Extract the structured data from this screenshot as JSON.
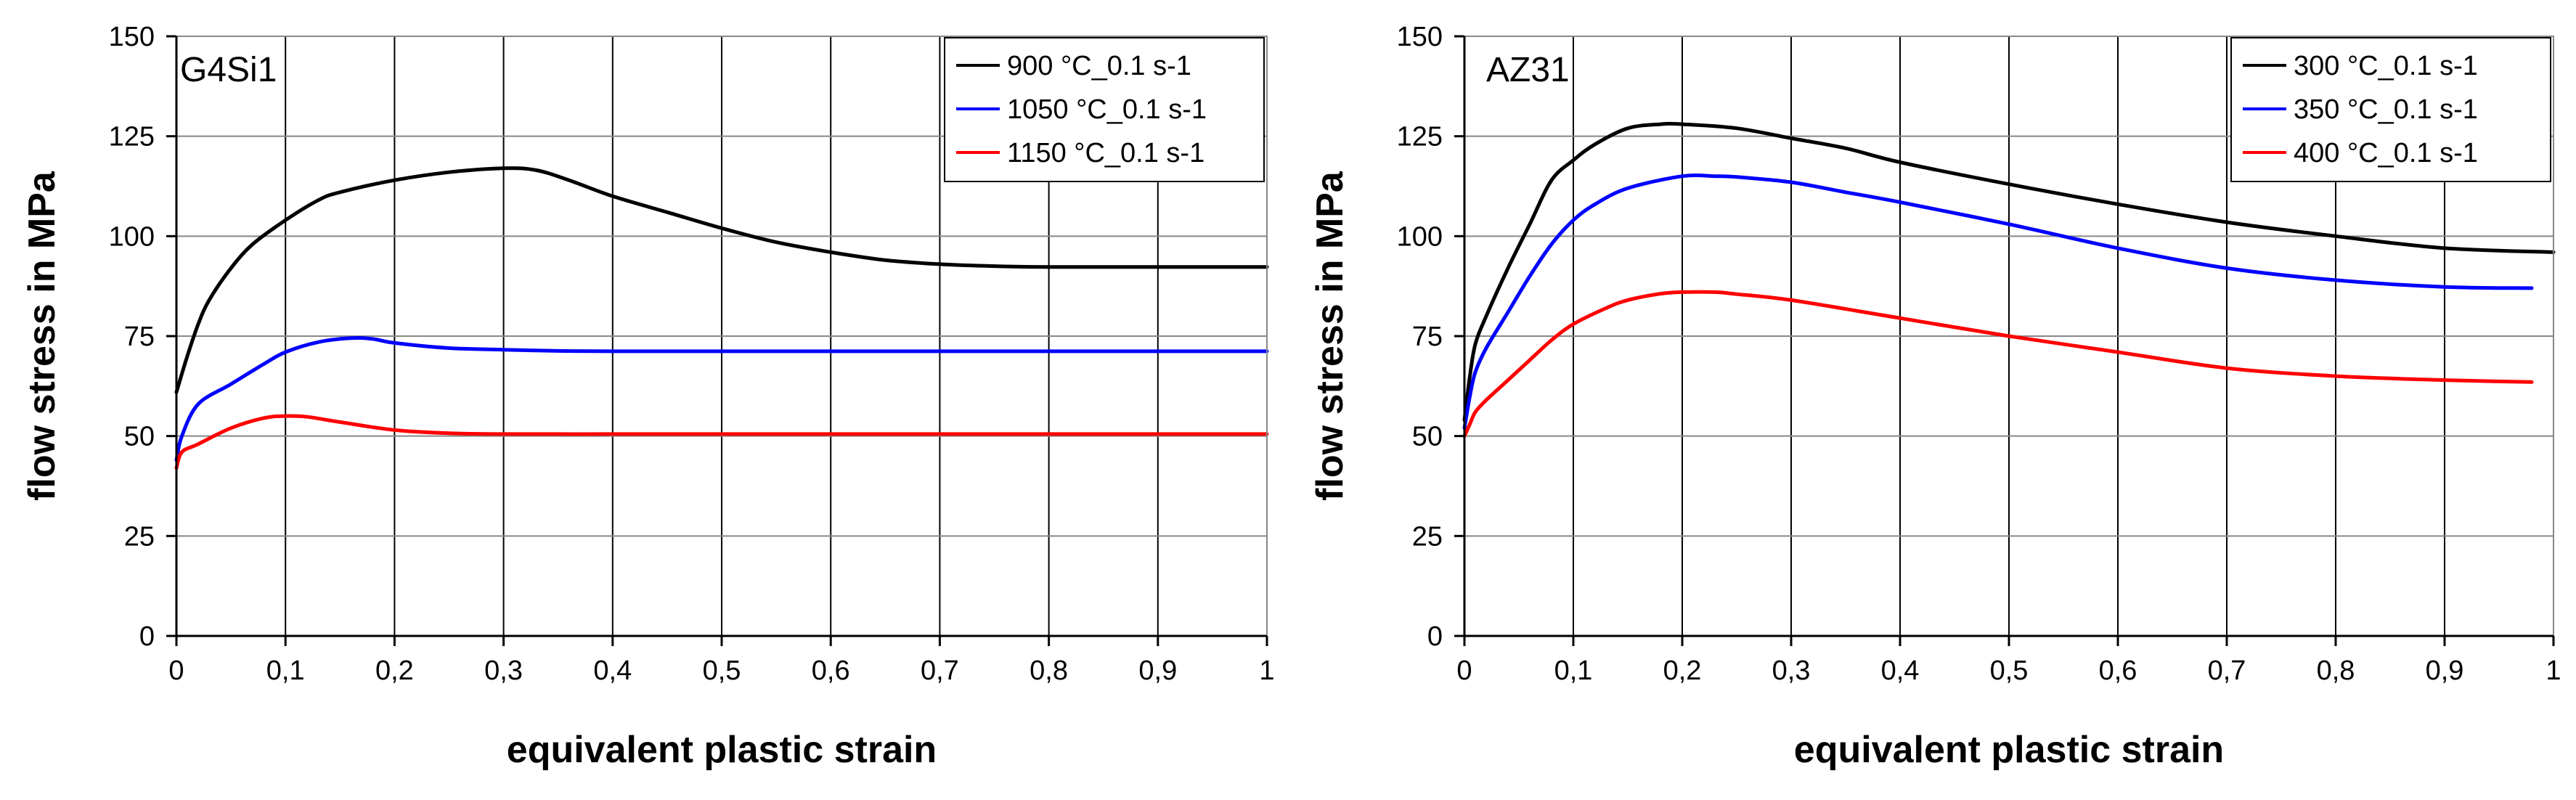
{
  "chart_data": [
    {
      "type": "line",
      "panel_label": "G4Si1",
      "xlabel": "equivalent plastic strain",
      "ylabel": "flow stress in MPa",
      "xlim": [
        0,
        1
      ],
      "ylim": [
        0,
        150
      ],
      "x_ticks": [
        "0",
        "0,1",
        "0,2",
        "0,3",
        "0,4",
        "0,5",
        "0,6",
        "0,7",
        "0,8",
        "0,9",
        "1"
      ],
      "y_ticks": [
        "0",
        "25",
        "50",
        "75",
        "100",
        "125",
        "150"
      ],
      "grid": true,
      "legend_position": "top-right",
      "series": [
        {
          "name": "900 °C_0.1 s-1",
          "color": "#000000",
          "x": [
            0,
            0.01,
            0.02,
            0.03,
            0.05,
            0.07,
            0.1,
            0.13,
            0.15,
            0.2,
            0.25,
            0.3,
            0.33,
            0.36,
            0.4,
            0.45,
            0.5,
            0.55,
            0.6,
            0.65,
            0.7,
            0.75,
            0.8,
            0.9,
            1.0
          ],
          "y": [
            61,
            70,
            78,
            84,
            92,
            98,
            104,
            109,
            111,
            114,
            116,
            117,
            116.5,
            114,
            110,
            106,
            102,
            98.5,
            96,
            94,
            93,
            92.5,
            92.3,
            92.3,
            92.3
          ]
        },
        {
          "name": "1050 °C_0.1 s-1",
          "color": "#0000ff",
          "x": [
            0,
            0.005,
            0.02,
            0.05,
            0.08,
            0.1,
            0.13,
            0.16,
            0.18,
            0.2,
            0.25,
            0.3,
            0.35,
            0.4,
            0.5,
            0.6,
            0.7,
            0.8,
            0.9,
            1.0
          ],
          "y": [
            44,
            50,
            58,
            63,
            68,
            71,
            73.5,
            74.5,
            74.3,
            73.3,
            72,
            71.6,
            71.3,
            71.2,
            71.2,
            71.2,
            71.2,
            71.2,
            71.2,
            71.2
          ]
        },
        {
          "name": "1150 °C_0.1 s-1",
          "color": "#ff0000",
          "x": [
            0,
            0.005,
            0.02,
            0.05,
            0.08,
            0.1,
            0.12,
            0.15,
            0.2,
            0.25,
            0.3,
            0.4,
            0.5,
            0.6,
            0.7,
            0.8,
            0.9,
            1.0
          ],
          "y": [
            42,
            46,
            48,
            52,
            54.5,
            55,
            54.8,
            53.5,
            51.5,
            50.7,
            50.5,
            50.5,
            50.5,
            50.5,
            50.5,
            50.5,
            50.5,
            50.5
          ]
        }
      ]
    },
    {
      "type": "line",
      "panel_label": "AZ31",
      "xlabel": "equivalent plastic strain",
      "ylabel": "flow stress in MPa",
      "xlim": [
        0,
        1
      ],
      "ylim": [
        0,
        150
      ],
      "x_ticks": [
        "0",
        "0,1",
        "0,2",
        "0,3",
        "0,4",
        "0,5",
        "0,6",
        "0,7",
        "0,8",
        "0,9",
        "1"
      ],
      "y_ticks": [
        "0",
        "25",
        "50",
        "75",
        "100",
        "125",
        "150"
      ],
      "grid": true,
      "legend_position": "top-right",
      "series": [
        {
          "name": "300 °C_0.1 s-1",
          "color": "#000000",
          "x": [
            0,
            0.005,
            0.01,
            0.02,
            0.04,
            0.06,
            0.08,
            0.1,
            0.12,
            0.15,
            0.18,
            0.2,
            0.25,
            0.3,
            0.35,
            0.4,
            0.5,
            0.6,
            0.7,
            0.8,
            0.9,
            1.0
          ],
          "y": [
            54,
            65,
            73,
            80,
            92,
            103,
            114,
            119,
            123,
            127,
            128,
            128,
            127,
            124.5,
            122,
            118.5,
            113,
            108,
            103.5,
            100,
            97,
            96
          ]
        },
        {
          "name": "350 °C_0.1 s-1",
          "color": "#0000ff",
          "x": [
            0,
            0.005,
            0.01,
            0.02,
            0.04,
            0.06,
            0.08,
            0.1,
            0.12,
            0.15,
            0.2,
            0.23,
            0.25,
            0.3,
            0.35,
            0.4,
            0.5,
            0.6,
            0.7,
            0.8,
            0.9,
            0.98
          ],
          "y": [
            52,
            60,
            66,
            72,
            81,
            90,
            98,
            104,
            108,
            112,
            115,
            115,
            114.8,
            113.5,
            111,
            108.5,
            103,
            97,
            92,
            89,
            87.3,
            87
          ]
        },
        {
          "name": "400 °C_0.1 s-1",
          "color": "#ff0000",
          "x": [
            0,
            0.005,
            0.01,
            0.02,
            0.04,
            0.06,
            0.08,
            0.1,
            0.13,
            0.15,
            0.18,
            0.2,
            0.23,
            0.25,
            0.3,
            0.4,
            0.5,
            0.6,
            0.7,
            0.8,
            0.9,
            0.98
          ],
          "y": [
            50,
            53,
            56,
            59,
            64,
            69,
            74,
            78,
            82,
            84,
            85.6,
            86,
            86,
            85.5,
            84,
            79.5,
            75,
            71,
            67,
            65,
            64,
            63.5
          ]
        }
      ]
    }
  ]
}
